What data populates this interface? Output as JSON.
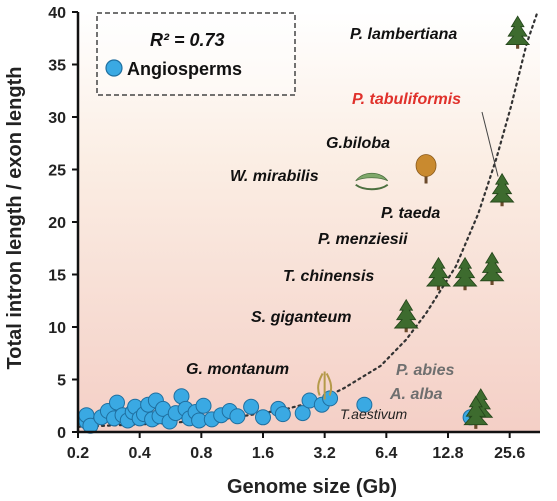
{
  "chart_data": {
    "type": "scatter",
    "xlabel": "Genome size (Gb)",
    "ylabel": "Total intron length / exon length",
    "x_scale": "log2",
    "xlim": [
      0.2,
      36
    ],
    "ylim": [
      0,
      40
    ],
    "x_ticks": [
      "0.2",
      "0.4",
      "0.8",
      "1.6",
      "3.2",
      "6.4",
      "12.8",
      "25.6"
    ],
    "y_ticks": [
      "0",
      "5",
      "10",
      "15",
      "20",
      "25",
      "30",
      "35",
      "40"
    ],
    "grid": false,
    "legend": {
      "r2_label": "R² = 0.73",
      "series_label": "Angiosperms",
      "placement": "top-left"
    },
    "colors": {
      "angiosperm": "#3aa9e3",
      "highlight": "#e0312b",
      "muted": "#6f6f6f",
      "tree": "#3d6b2e",
      "trend": "#333333"
    },
    "angiosperms": [
      [
        0.22,
        1.0
      ],
      [
        0.22,
        1.6
      ],
      [
        0.23,
        0.6
      ],
      [
        0.26,
        1.4
      ],
      [
        0.28,
        2.0
      ],
      [
        0.3,
        1.3
      ],
      [
        0.31,
        2.8
      ],
      [
        0.33,
        1.6
      ],
      [
        0.35,
        1.1
      ],
      [
        0.37,
        1.9
      ],
      [
        0.38,
        2.4
      ],
      [
        0.4,
        1.3
      ],
      [
        0.42,
        1.7
      ],
      [
        0.44,
        2.6
      ],
      [
        0.46,
        1.2
      ],
      [
        0.48,
        3.0
      ],
      [
        0.5,
        1.5
      ],
      [
        0.52,
        2.2
      ],
      [
        0.56,
        1.0
      ],
      [
        0.6,
        1.8
      ],
      [
        0.64,
        3.4
      ],
      [
        0.67,
        2.2
      ],
      [
        0.7,
        1.3
      ],
      [
        0.75,
        1.9
      ],
      [
        0.78,
        1.1
      ],
      [
        0.82,
        2.5
      ],
      [
        0.9,
        1.2
      ],
      [
        1.0,
        1.6
      ],
      [
        1.1,
        2.0
      ],
      [
        1.2,
        1.5
      ],
      [
        1.4,
        2.4
      ],
      [
        1.6,
        1.4
      ],
      [
        1.9,
        2.2
      ],
      [
        2.0,
        1.7
      ],
      [
        2.5,
        1.8
      ],
      [
        2.7,
        3.0
      ],
      [
        3.1,
        2.6
      ],
      [
        3.4,
        3.2
      ],
      [
        5.0,
        2.6
      ],
      [
        16.5,
        1.4
      ]
    ],
    "trend_curve": [
      [
        0.2,
        0.5
      ],
      [
        0.5,
        0.8
      ],
      [
        1.0,
        1.2
      ],
      [
        2.0,
        2.1
      ],
      [
        3.0,
        3.0
      ],
      [
        4.0,
        4.2
      ],
      [
        6.0,
        6.3
      ],
      [
        8.0,
        8.8
      ],
      [
        10.0,
        11.3
      ],
      [
        14.0,
        15.8
      ],
      [
        18.0,
        20.8
      ],
      [
        22.0,
        26.0
      ],
      [
        26.0,
        31.0
      ],
      [
        31.0,
        37.0
      ],
      [
        35.0,
        40.5
      ]
    ],
    "species": [
      {
        "name": "P. lambertiana",
        "x": 28.0,
        "y": 38.0,
        "label_color": "#111111"
      },
      {
        "name": "P. tabuliformis",
        "x": 23.5,
        "y": 23.0,
        "label_color": "#e0312b"
      },
      {
        "name": "G.biloba",
        "x": 10.0,
        "y": 25.0,
        "label_color": "#111111"
      },
      {
        "name": "W. mirabilis",
        "x": 6.8,
        "y": 24.5,
        "label_color": "#111111"
      },
      {
        "name": "P. taeda",
        "x": 21.0,
        "y": 15.5,
        "label_color": "#111111"
      },
      {
        "name": "P. menziesii",
        "x": 15.5,
        "y": 15.0,
        "label_color": "#111111"
      },
      {
        "name": "T. chinensis",
        "x": 11.5,
        "y": 15.0,
        "label_color": "#111111"
      },
      {
        "name": "S. giganteum",
        "x": 8.0,
        "y": 11.0,
        "label_color": "#111111"
      },
      {
        "name": "G. montanum",
        "x": 3.5,
        "y": 5.0,
        "label_color": "#111111"
      },
      {
        "name": "P. abies",
        "x": 18.5,
        "y": 2.5,
        "label_color": "#6f6f6f"
      },
      {
        "name": "A. alba",
        "x": 17.5,
        "y": 1.8,
        "label_color": "#6f6f6f"
      },
      {
        "name": "T.aestivum",
        "x": 16.5,
        "y": 1.4,
        "label_color": "#222222"
      }
    ]
  }
}
